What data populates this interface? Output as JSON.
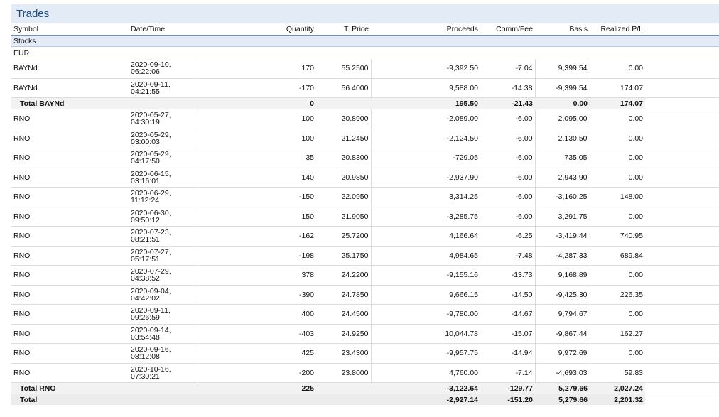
{
  "title": "Trades",
  "headers": {
    "symbol": "Symbol",
    "datetime": "Date/Time",
    "quantity": "Quantity",
    "tprice": "T. Price",
    "proceeds": "Proceeds",
    "commfee": "Comm/Fee",
    "basis": "Basis",
    "realized": "Realized P/L"
  },
  "section": "Stocks",
  "currency": "EUR",
  "groups": [
    {
      "rows": [
        {
          "symbol": "BAYNd",
          "date": "2020-09-10,",
          "time": "06:22:06",
          "quantity": "170",
          "price": "55.2500",
          "proceeds": "-9,392.50",
          "comm": "-7.04",
          "basis": "9,399.54",
          "pl": "0.00"
        },
        {
          "symbol": "BAYNd",
          "date": "2020-09-11,",
          "time": "04:21:55",
          "quantity": "-170",
          "price": "56.4000",
          "proceeds": "9,588.00",
          "comm": "-14.38",
          "basis": "-9,399.54",
          "pl": "174.07"
        }
      ],
      "total": {
        "label": "Total BAYNd",
        "quantity": "0",
        "proceeds": "195.50",
        "comm": "-21.43",
        "basis": "0.00",
        "pl": "174.07"
      }
    },
    {
      "rows": [
        {
          "symbol": "RNO",
          "date": "2020-05-27,",
          "time": "04:30:19",
          "quantity": "100",
          "price": "20.8900",
          "proceeds": "-2,089.00",
          "comm": "-6.00",
          "basis": "2,095.00",
          "pl": "0.00"
        },
        {
          "symbol": "RNO",
          "date": "2020-05-29,",
          "time": "03:00:03",
          "quantity": "100",
          "price": "21.2450",
          "proceeds": "-2,124.50",
          "comm": "-6.00",
          "basis": "2,130.50",
          "pl": "0.00"
        },
        {
          "symbol": "RNO",
          "date": "2020-05-29,",
          "time": "04:17:50",
          "quantity": "35",
          "price": "20.8300",
          "proceeds": "-729.05",
          "comm": "-6.00",
          "basis": "735.05",
          "pl": "0.00"
        },
        {
          "symbol": "RNO",
          "date": "2020-06-15,",
          "time": "03:16:01",
          "quantity": "140",
          "price": "20.9850",
          "proceeds": "-2,937.90",
          "comm": "-6.00",
          "basis": "2,943.90",
          "pl": "0.00"
        },
        {
          "symbol": "RNO",
          "date": "2020-06-29,",
          "time": "11:12:24",
          "quantity": "-150",
          "price": "22.0950",
          "proceeds": "3,314.25",
          "comm": "-6.00",
          "basis": "-3,160.25",
          "pl": "148.00"
        },
        {
          "symbol": "RNO",
          "date": "2020-06-30,",
          "time": "09:50:12",
          "quantity": "150",
          "price": "21.9050",
          "proceeds": "-3,285.75",
          "comm": "-6.00",
          "basis": "3,291.75",
          "pl": "0.00"
        },
        {
          "symbol": "RNO",
          "date": "2020-07-23,",
          "time": "08:21:51",
          "quantity": "-162",
          "price": "25.7200",
          "proceeds": "4,166.64",
          "comm": "-6.25",
          "basis": "-3,419.44",
          "pl": "740.95"
        },
        {
          "symbol": "RNO",
          "date": "2020-07-27,",
          "time": "05:17:51",
          "quantity": "-198",
          "price": "25.1750",
          "proceeds": "4,984.65",
          "comm": "-7.48",
          "basis": "-4,287.33",
          "pl": "689.84"
        },
        {
          "symbol": "RNO",
          "date": "2020-07-29,",
          "time": "04:38:52",
          "quantity": "378",
          "price": "24.2200",
          "proceeds": "-9,155.16",
          "comm": "-13.73",
          "basis": "9,168.89",
          "pl": "0.00"
        },
        {
          "symbol": "RNO",
          "date": "2020-09-04,",
          "time": "04:42:02",
          "quantity": "-390",
          "price": "24.7850",
          "proceeds": "9,666.15",
          "comm": "-14.50",
          "basis": "-9,425.30",
          "pl": "226.35"
        },
        {
          "symbol": "RNO",
          "date": "2020-09-11,",
          "time": "09:26:59",
          "quantity": "400",
          "price": "24.4500",
          "proceeds": "-9,780.00",
          "comm": "-14.67",
          "basis": "9,794.67",
          "pl": "0.00"
        },
        {
          "symbol": "RNO",
          "date": "2020-09-14,",
          "time": "03:54:48",
          "quantity": "-403",
          "price": "24.9250",
          "proceeds": "10,044.78",
          "comm": "-15.07",
          "basis": "-9,867.44",
          "pl": "162.27"
        },
        {
          "symbol": "RNO",
          "date": "2020-09-16,",
          "time": "08:12:08",
          "quantity": "425",
          "price": "23.4300",
          "proceeds": "-9,957.75",
          "comm": "-14.94",
          "basis": "9,972.69",
          "pl": "0.00"
        },
        {
          "symbol": "RNO",
          "date": "2020-10-16,",
          "time": "07:30:21",
          "quantity": "-200",
          "price": "23.8000",
          "proceeds": "4,760.00",
          "comm": "-7.14",
          "basis": "-4,693.03",
          "pl": "59.83"
        }
      ],
      "total": {
        "label": "Total RNO",
        "quantity": "225",
        "proceeds": "-3,122.64",
        "comm": "-129.77",
        "basis": "5,279.66",
        "pl": "2,027.24"
      }
    }
  ],
  "grand_total": {
    "label": "Total",
    "proceeds": "-2,927.14",
    "comm": "-151.20",
    "basis": "5,279.66",
    "pl": "2,201.32"
  }
}
